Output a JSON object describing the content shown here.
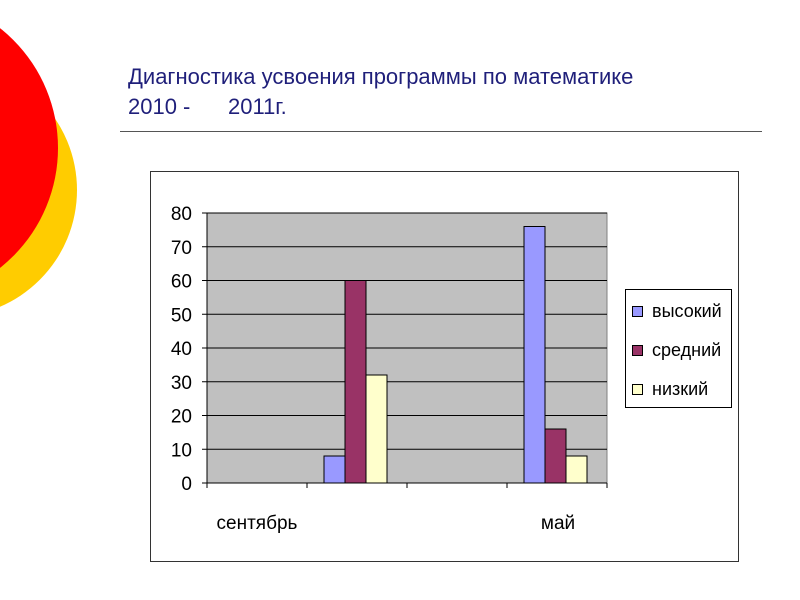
{
  "slide": {
    "title_line1": "Диагностика усвоения программы по математике",
    "title_line2a": "2010 -",
    "title_line2b": "2011г."
  },
  "colors": {
    "title": "#1f1f7a",
    "plot_bg": "#c0c0c0",
    "deco_red": "#ff0000",
    "deco_yellow": "#ffcc00"
  },
  "chart_data": {
    "type": "bar",
    "categories": [
      "сентябрь",
      "май"
    ],
    "series": [
      {
        "name": "высокий",
        "values": [
          8,
          76
        ],
        "color": "#9999ff"
      },
      {
        "name": "средний",
        "values": [
          60,
          16
        ],
        "color": "#993366"
      },
      {
        "name": "низкий",
        "values": [
          32,
          8
        ],
        "color": "#ffffcc"
      }
    ],
    "ylim": [
      0,
      80
    ],
    "yticks": [
      0,
      10,
      20,
      30,
      40,
      50,
      60,
      70,
      80
    ],
    "grid": true,
    "legend": "right"
  }
}
